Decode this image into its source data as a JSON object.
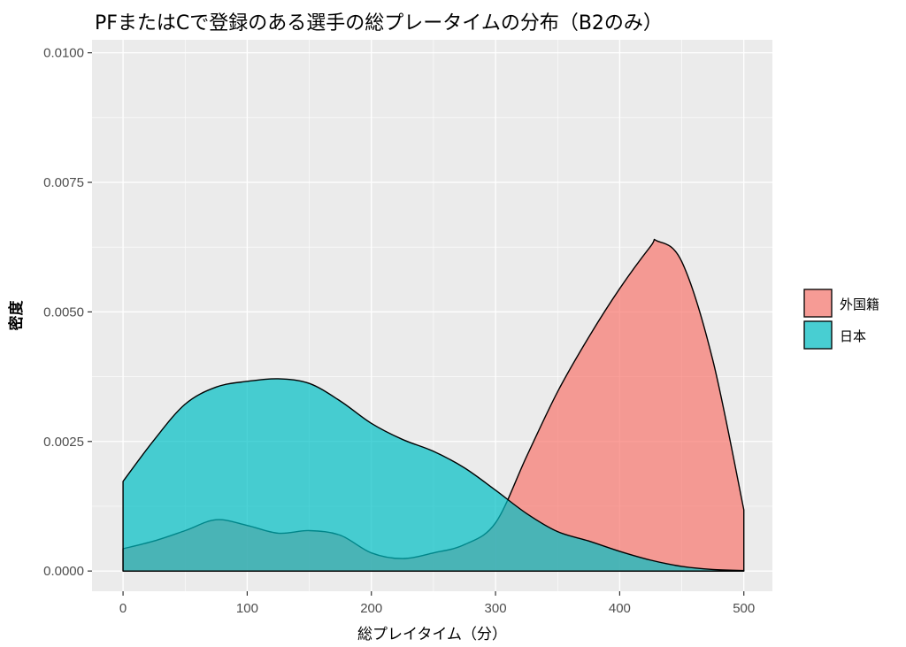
{
  "chart_data": {
    "type": "area",
    "title": "PFまたはCで登録のある選手の総プレータイムの分布（B2のみ）",
    "xlabel": "総プレイタイム（分）",
    "ylabel": "密度",
    "xlim": [
      -25,
      523
    ],
    "ylim": [
      -0.00039,
      0.01025
    ],
    "x_ticks": [
      0,
      100,
      200,
      300,
      400,
      500
    ],
    "x_tick_labels": [
      "0",
      "100",
      "200",
      "300",
      "400",
      "500"
    ],
    "y_ticks": [
      0,
      0.0025,
      0.005,
      0.0075,
      0.01
    ],
    "y_tick_labels": [
      "0.0000",
      "0.0025",
      "0.0050",
      "0.0075",
      "0.0100"
    ],
    "grid": true,
    "legend_position": "right",
    "series": [
      {
        "name": "外国籍",
        "color": "#F8766D",
        "x": [
          0,
          25,
          50,
          75,
          100,
          125,
          150,
          175,
          200,
          225,
          250,
          275,
          300,
          325,
          350,
          375,
          400,
          425,
          430,
          450,
          475,
          500
        ],
        "y": [
          0.00043,
          0.00058,
          0.00078,
          0.00099,
          0.00088,
          0.00073,
          0.00078,
          0.00069,
          0.00035,
          0.00024,
          0.00035,
          0.00051,
          0.00093,
          0.00221,
          0.00346,
          0.00451,
          0.00545,
          0.00627,
          0.00637,
          0.00597,
          0.00407,
          0.00118
        ]
      },
      {
        "name": "日本",
        "color": "#00BFC4",
        "x": [
          0,
          25,
          50,
          75,
          100,
          125,
          150,
          175,
          200,
          225,
          250,
          275,
          300,
          325,
          350,
          375,
          400,
          425,
          450,
          475,
          500
        ],
        "y": [
          0.00173,
          0.00253,
          0.00322,
          0.00355,
          0.00366,
          0.00371,
          0.00362,
          0.00328,
          0.00285,
          0.00254,
          0.00231,
          0.00199,
          0.00156,
          0.00111,
          0.00076,
          0.00058,
          0.00038,
          0.00021,
          9e-05,
          3e-05,
          1e-05
        ]
      }
    ]
  }
}
